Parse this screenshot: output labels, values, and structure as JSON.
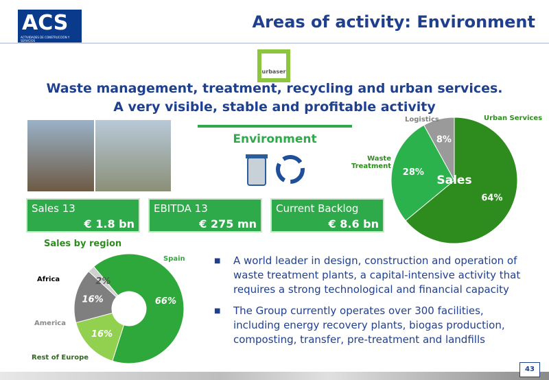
{
  "header": {
    "logo": "ACS",
    "logo_tagline": "ACTIVIDADES DE CONSTRUCCIÓN Y SERVICIOS",
    "title": "Areas of activity: Environment"
  },
  "brand": "urbaser",
  "subtitle": [
    "Waste management, treatment, recycling and urban services.",
    "A very visible, stable and profitable activity"
  ],
  "section": "Environment",
  "kpis": [
    {
      "label": "Sales 13",
      "value": "€ 1.8 bn"
    },
    {
      "label": "EBITDA 13",
      "value": "€ 275 mn"
    },
    {
      "label": "Current Backlog",
      "value": "€ 8.6 bn"
    }
  ],
  "bullets": [
    "A world leader in design, construction and operation of waste treatment plants, a capital-intensive activity that requires a strong technological and financial capacity",
    "The Group currently operates over 300 facilities, including energy recovery plants, biogas production, composting, transfer, pre-treatment and landfills"
  ],
  "page_number": "43",
  "chart_data": [
    {
      "type": "pie",
      "title": "Sales",
      "categories": [
        "Urban Services",
        "Waste Treatment",
        "Logistics"
      ],
      "values": [
        64,
        28,
        8
      ],
      "value_labels": [
        "64%",
        "28%",
        "8%"
      ],
      "colors": [
        "#2e8b1e",
        "#2bb24c",
        "#9a9a9a"
      ]
    },
    {
      "type": "donut",
      "title": "Sales by region",
      "categories": [
        "Spain",
        "Rest of Europe",
        "America",
        "Africa"
      ],
      "values": [
        66,
        16,
        16,
        2
      ],
      "value_labels": [
        "66%",
        "16%",
        "16%",
        "2%"
      ],
      "colors": [
        "#2ea83a",
        "#92d050",
        "#7f7f7f",
        "#d0d0d0"
      ]
    }
  ]
}
